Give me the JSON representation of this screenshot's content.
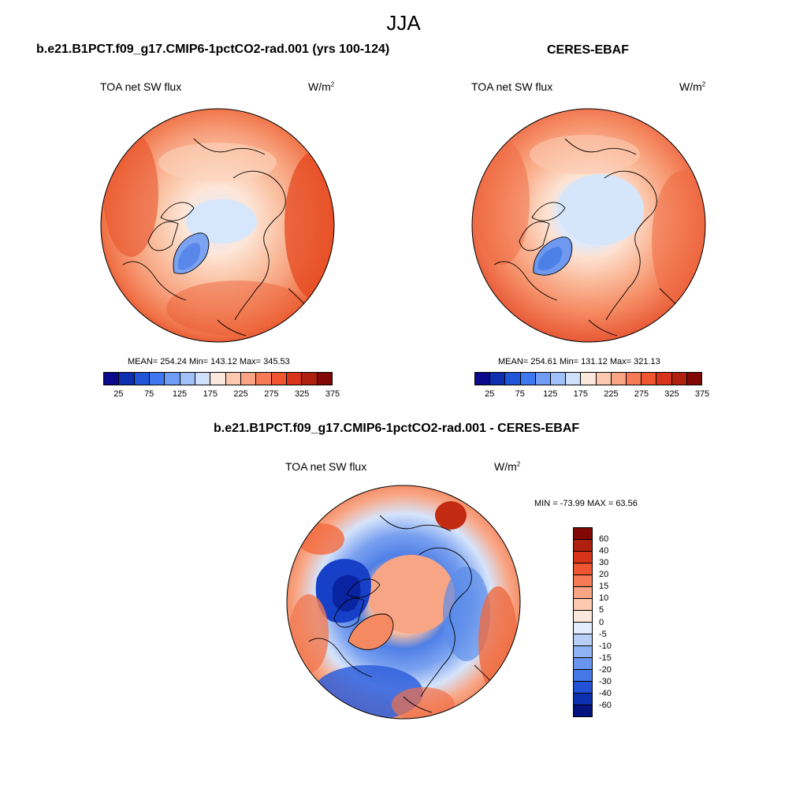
{
  "figure": {
    "title": "JJA"
  },
  "panels": [
    {
      "case_title": "b.e21.B1PCT.f09_g17.CMIP6-1pctCO2-rad.001 (yrs 100-124)",
      "left_label": "TOA net SW flux",
      "units_base": "W/m",
      "units_sup": "2",
      "stats": "MEAN= 254.24  Min= 143.12  Max= 345.53",
      "mean": 254.24,
      "min": 143.12,
      "max": 345.53
    },
    {
      "case_title": "CERES-EBAF",
      "left_label": "TOA net SW flux",
      "units_base": "W/m",
      "units_sup": "2",
      "stats": "MEAN= 254.61  Min= 131.12  Max= 321.13",
      "mean": 254.61,
      "min": 131.12,
      "max": 321.13
    },
    {
      "case_title": "b.e21.B1PCT.f09_g17.CMIP6-1pctCO2-rad.001 - CERES-EBAF",
      "left_label": "TOA net SW flux",
      "units_base": "W/m",
      "units_sup": "2",
      "stats": "MIN = -73.99 MAX =  63.56",
      "min": -73.99,
      "max": 63.56
    }
  ],
  "colorbar_abs": {
    "colors": [
      "#0a0a8a",
      "#0d2fb0",
      "#1f55d6",
      "#3f78ee",
      "#6f9cf5",
      "#9fc0f8",
      "#cfe0fb",
      "#fbe8dc",
      "#fcc9b0",
      "#f9a484",
      "#f57a55",
      "#ef5530",
      "#d8341c",
      "#b0200f",
      "#820806"
    ],
    "tick_labels": [
      "25",
      "75",
      "125",
      "175",
      "225",
      "275",
      "325",
      "375"
    ]
  },
  "colorbar_diff": {
    "colors": [
      "#820806",
      "#b0200f",
      "#d8341c",
      "#ef5530",
      "#f57a55",
      "#f9a484",
      "#fcc9b0",
      "#fbe8dc",
      "#e1ecfc",
      "#b6cff9",
      "#8fb3f4",
      "#6a95ee",
      "#4577e6",
      "#2452d6",
      "#0c30b0",
      "#05137e"
    ],
    "tick_labels": [
      "60",
      "40",
      "30",
      "20",
      "15",
      "10",
      "5",
      "0",
      "-5",
      "-10",
      "-15",
      "-20",
      "-30",
      "-40",
      "-60"
    ]
  }
}
